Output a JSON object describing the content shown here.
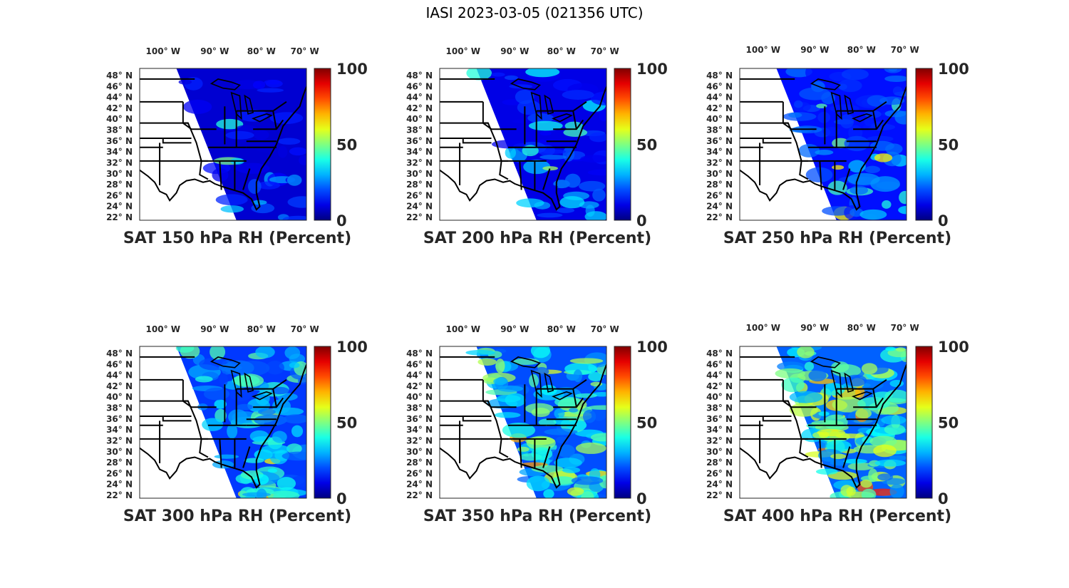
{
  "title": "IASI 2023-03-05 (021356 UTC)",
  "colors": {
    "colormap": "jet",
    "land_outline": "#000000",
    "background": "#ffffff"
  },
  "map": {
    "lon_ticks": [
      "100° W",
      "90° W",
      "80° W",
      "70° W"
    ],
    "lat_ticks": [
      "48° N",
      "46° N",
      "44° N",
      "42° N",
      "40° N",
      "38° N",
      "36° N",
      "34° N",
      "32° N",
      "30° N",
      "28° N",
      "26° N",
      "24° N",
      "22° N"
    ]
  },
  "colorbar": {
    "min": 0,
    "max": 100,
    "tick_labels": [
      "100",
      "50",
      "0"
    ]
  },
  "panels": [
    {
      "title": "SAT 150 hPa RH (Percent)",
      "level_hPa": 150,
      "typical_rh": 8,
      "moist_rh": 32
    },
    {
      "title": "SAT 200 hPa RH (Percent)",
      "level_hPa": 200,
      "typical_rh": 10,
      "moist_rh": 38
    },
    {
      "title": "SAT 250 hPa RH (Percent)",
      "level_hPa": 250,
      "typical_rh": 14,
      "moist_rh": 45
    },
    {
      "title": "SAT 300 hPa RH (Percent)",
      "level_hPa": 300,
      "typical_rh": 18,
      "moist_rh": 48
    },
    {
      "title": "SAT 350 hPa RH (Percent)",
      "level_hPa": 350,
      "typical_rh": 20,
      "moist_rh": 55
    },
    {
      "title": "SAT 400 hPa RH (Percent)",
      "level_hPa": 400,
      "typical_rh": 22,
      "moist_rh": 60
    }
  ]
}
